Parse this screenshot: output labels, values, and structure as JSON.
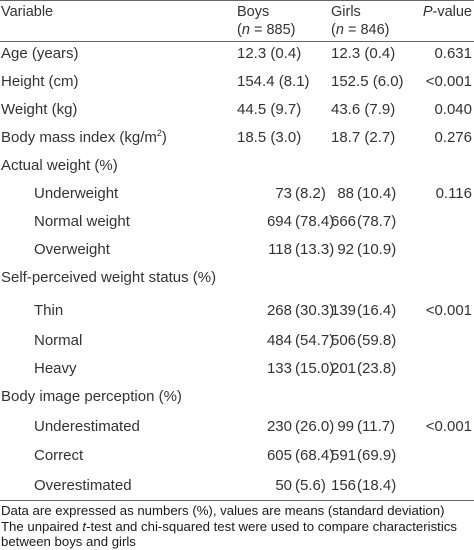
{
  "header": {
    "variable": "Variable",
    "boys": "Boys",
    "boys_n_label": "n",
    "boys_n_value": "885",
    "girls": "Girls",
    "girls_n_label": "n",
    "girls_n_value": "846",
    "p_label": "P",
    "p_suffix": "-value"
  },
  "rows": [
    {
      "label": "Age (years)",
      "boys": "12.3 (0.4)",
      "girls": "12.3 (0.4)",
      "p": "0.631"
    },
    {
      "label": "Height (cm)",
      "boys": "154.4 (8.1)",
      "girls": "152.5 (6.0)",
      "p": "<0.001"
    },
    {
      "label": "Weight (kg)",
      "boys": "44.5 (9.7)",
      "girls": "43.6 (7.9)",
      "p": "0.040"
    },
    {
      "label": "Body mass index (kg/m",
      "label_sup": "2",
      "label_end": ")",
      "boys": "18.5 (3.0)",
      "girls": "18.7 (2.7)",
      "p": "0.276"
    },
    {
      "label": "Actual weight (%)"
    },
    {
      "label": "Underweight",
      "boys_n": "73",
      "boys_pct": "(8.2)",
      "girls_n": "88",
      "girls_pct": "(10.4)",
      "p": "0.116"
    },
    {
      "label": "Normal weight",
      "boys_n": "694",
      "boys_pct": "(78.4)",
      "girls_n": "666",
      "girls_pct": "(78.7)"
    },
    {
      "label": "Overweight",
      "boys_n": "118",
      "boys_pct": "(13.3)",
      "girls_n": "92",
      "girls_pct": "(10.9)"
    },
    {
      "label": "Self-perceived weight status (%)"
    },
    {
      "label": "Thin",
      "boys_n": "268",
      "boys_pct": "(30.3)",
      "girls_n": "139",
      "girls_pct": "(16.4)",
      "p": "<0.001"
    },
    {
      "label": "Normal",
      "boys_n": "484",
      "boys_pct": "(54.7)",
      "girls_n": "506",
      "girls_pct": "(59.8)"
    },
    {
      "label": "Heavy",
      "boys_n": "133",
      "boys_pct": "(15.0)",
      "girls_n": "201",
      "girls_pct": "(23.8)"
    },
    {
      "label": "Body image perception (%)"
    },
    {
      "label": "Underestimated",
      "boys_n": "230",
      "boys_pct": "(26.0)",
      "girls_n": "99",
      "girls_pct": "(11.7)",
      "p": "<0.001"
    },
    {
      "label": "Correct",
      "boys_n": "605",
      "boys_pct": "(68.4)",
      "girls_n": "591",
      "girls_pct": "(69.9)"
    },
    {
      "label": "Overestimated",
      "boys_n": "50",
      "boys_pct": "(5.6)",
      "girls_n": "156",
      "girls_pct": "(18.4)"
    }
  ],
  "footnotes": {
    "line1": "Data are expressed as numbers (%), values are means (standard deviation)",
    "line2_a": "The unpaired ",
    "line2_t": "t",
    "line2_b": "-test and chi-squared test were used to compare characteristics",
    "line3": "between boys and girls"
  }
}
